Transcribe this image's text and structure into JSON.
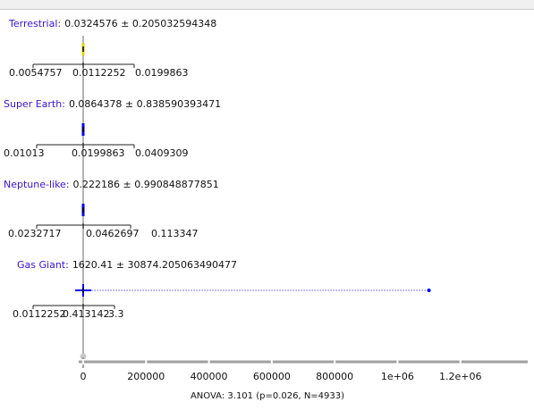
{
  "chart_data": {
    "type": "boxplot",
    "xlim": [
      0,
      1400000
    ],
    "x_ticks": [
      {
        "value": 0,
        "label": "0"
      },
      {
        "value": 200000,
        "label": "200000"
      },
      {
        "value": 400000,
        "label": "400000"
      },
      {
        "value": 600000,
        "label": "600000"
      },
      {
        "value": 800000,
        "label": "800000"
      },
      {
        "value": 1000000,
        "label": "1e+06"
      },
      {
        "value": 1200000,
        "label": "1.2e+06"
      }
    ],
    "groups": [
      {
        "name": "Terrestrial",
        "summary": "0.0324576 ± 0.205032594348",
        "mean": 0.0324576,
        "q1": 0.0054757,
        "median": 0.0112252,
        "q3": 0.0199863,
        "q1_label": "0.0054757",
        "median_label": "0.0112252",
        "q3_label": "0.0199863",
        "max": 0.0199863,
        "color": "#e6d200"
      },
      {
        "name": "Super Earth",
        "summary": "0.0864378 ± 0.838590393471",
        "mean": 0.0864378,
        "q1": 0.01013,
        "median": 0.0199863,
        "q3": 0.0409309,
        "q1_label": "0.01013",
        "median_label": "0.0199863",
        "q3_label": "0.0409309",
        "max": 0.0409309,
        "color": "#0000ff"
      },
      {
        "name": "Neptune-like",
        "summary": "0.222186 ± 0.990848877851",
        "mean": 0.222186,
        "q1": 0.0232717,
        "median": 0.0462697,
        "q3": 0.113347,
        "q1_label": "0.0232717",
        "median_label": "0.0462697",
        "q3_label": "0.113347",
        "max": 0.113347,
        "color": "#0000ff"
      },
      {
        "name": "Gas Giant",
        "summary": "1620.41 ± 30874.205063490477",
        "mean": 1620.41,
        "q1": 0.0112252,
        "median": 0.413142,
        "q3": 3.3,
        "q1_label": "0.0112252",
        "median_label": "0.413142",
        "q3_label": "3.3",
        "max": 1100000,
        "color": "#0000ff"
      }
    ],
    "footer": "ANOVA: 3.101 (p=0.026, N=4933)"
  }
}
